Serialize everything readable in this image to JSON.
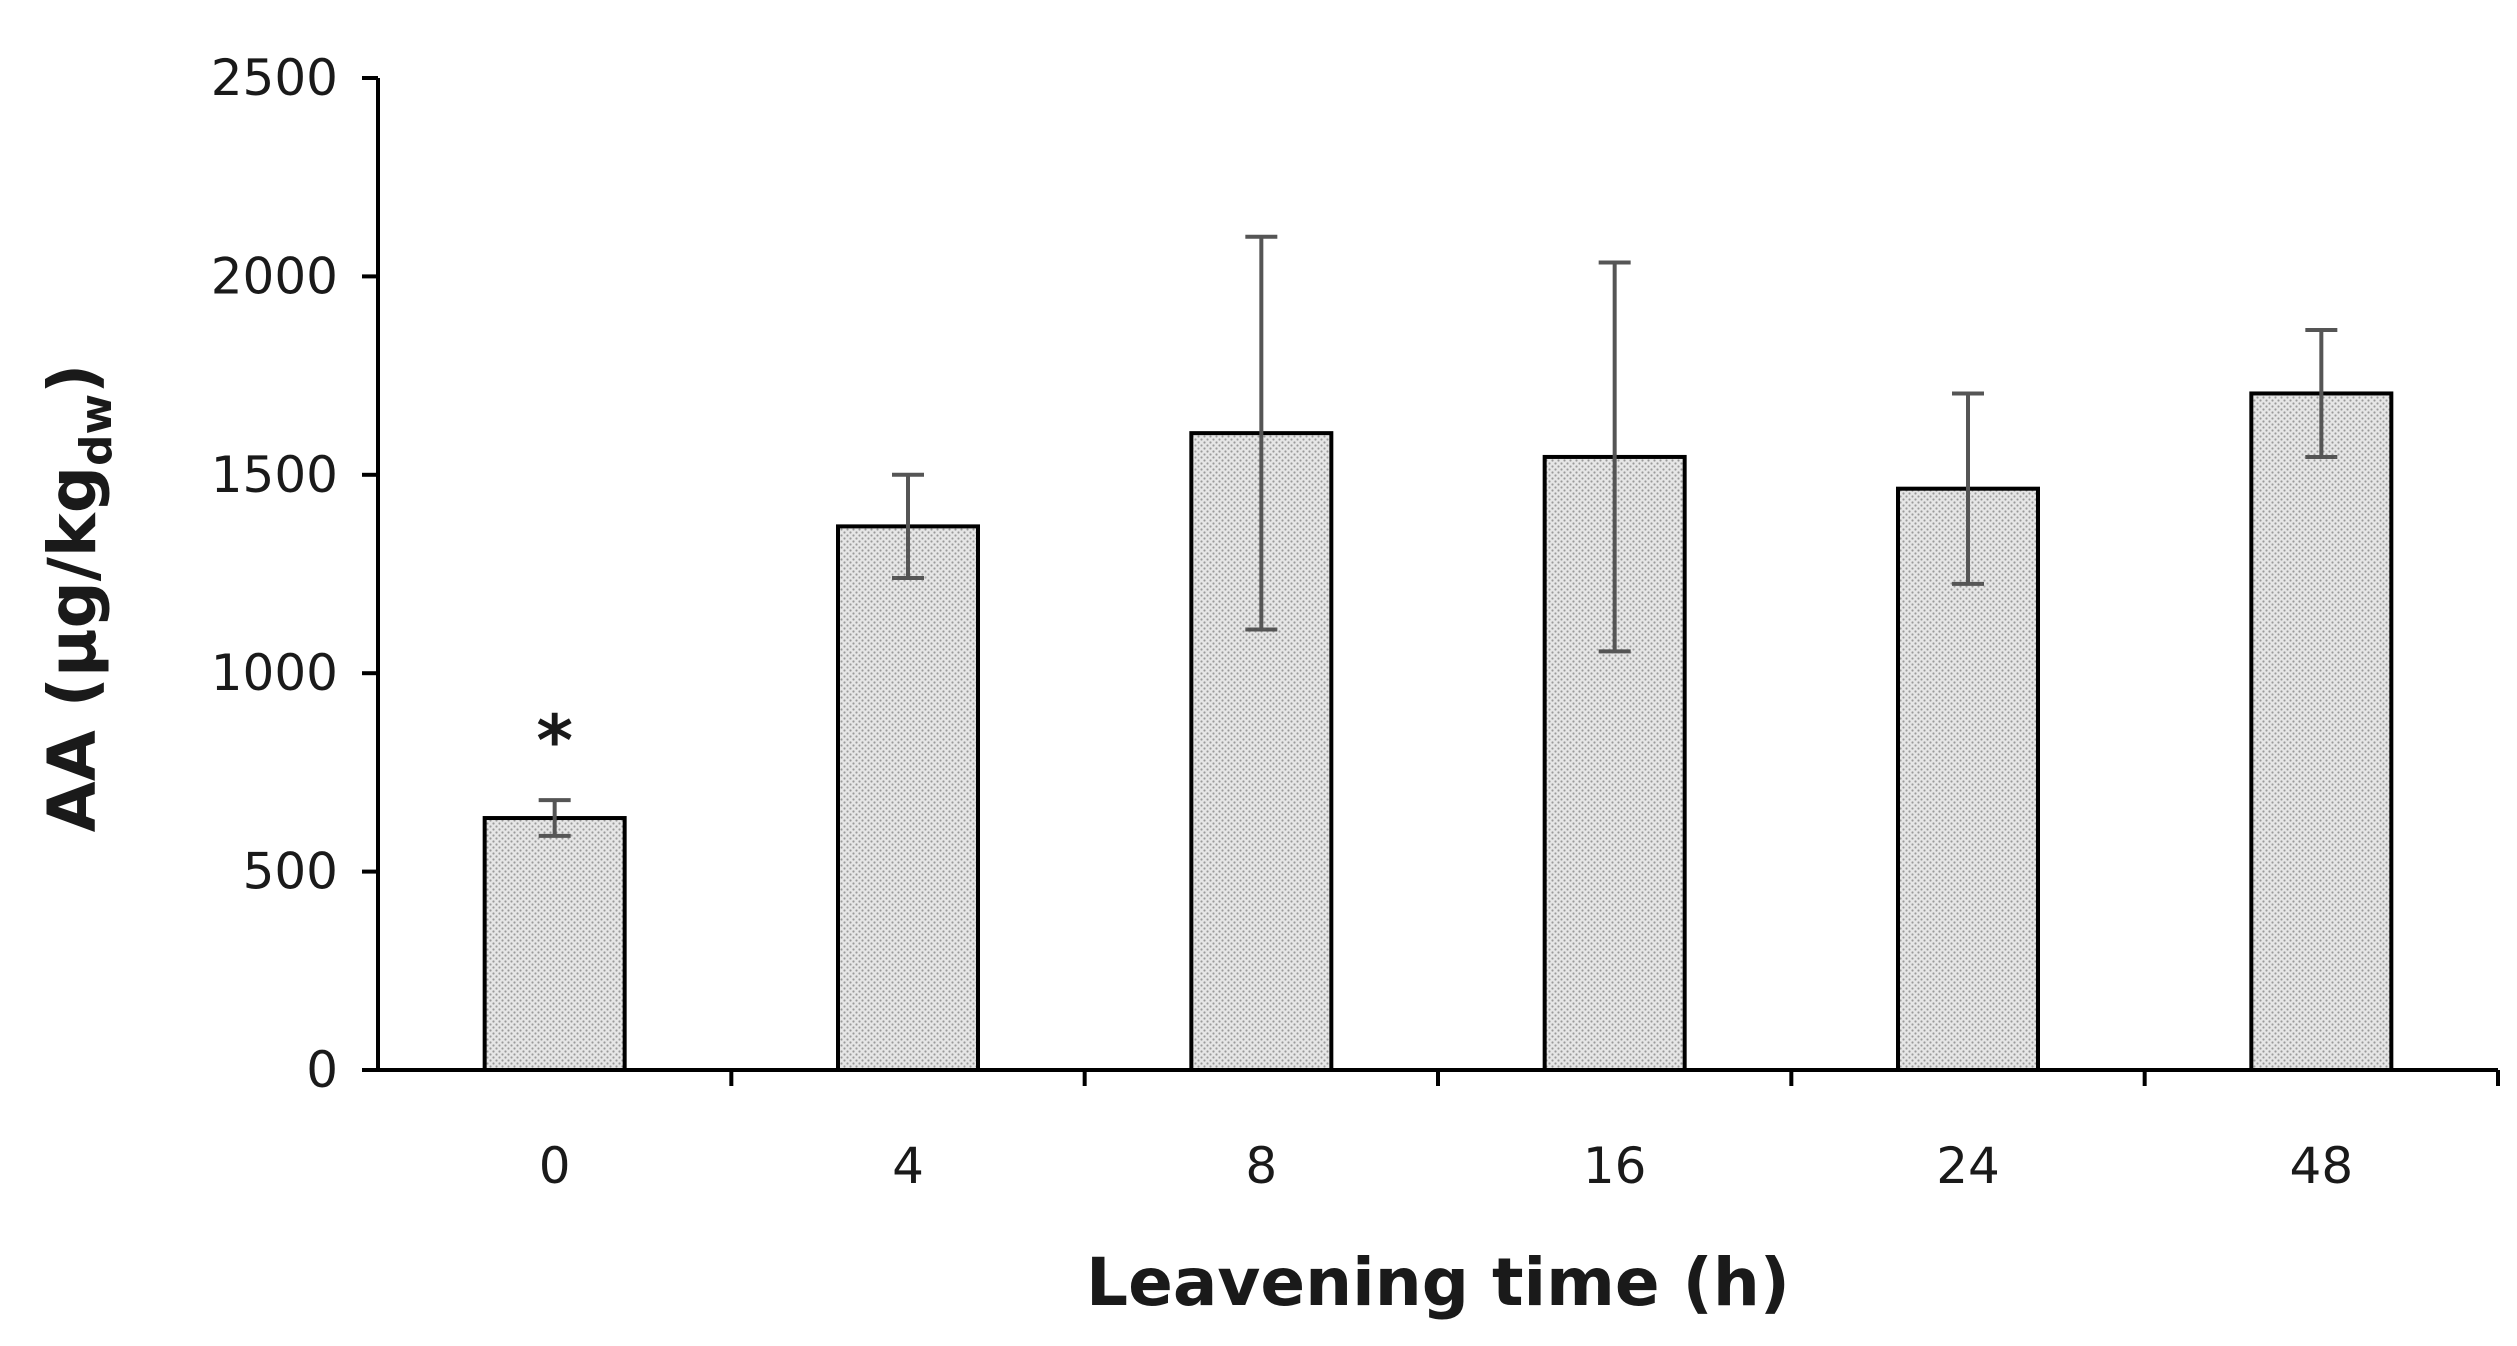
{
  "chart_data": {
    "type": "bar",
    "categories": [
      "0",
      "4",
      "8",
      "16",
      "24",
      "48"
    ],
    "values": [
      635,
      1370,
      1605,
      1545,
      1465,
      1705
    ],
    "errors": [
      45,
      130,
      495,
      490,
      240,
      160
    ],
    "xlabel": "Leavening time (h)",
    "ylabel": {
      "main": "AA (μg/kg",
      "subscript": "dw",
      "close": ")"
    },
    "ylim": [
      0,
      2500
    ],
    "yticks": [
      "0",
      "500",
      "1000",
      "1500",
      "2000",
      "2500"
    ],
    "ytick_values": [
      0,
      500,
      1000,
      1500,
      2000,
      2500
    ],
    "grid": false,
    "legend": "none",
    "annotations": [
      {
        "category": "0",
        "text": "*"
      }
    ],
    "colors": {
      "bar_fill": "#d9d9d9",
      "bar_stroke": "#000000",
      "error_bar": "#555555",
      "axis": "#000000"
    }
  }
}
